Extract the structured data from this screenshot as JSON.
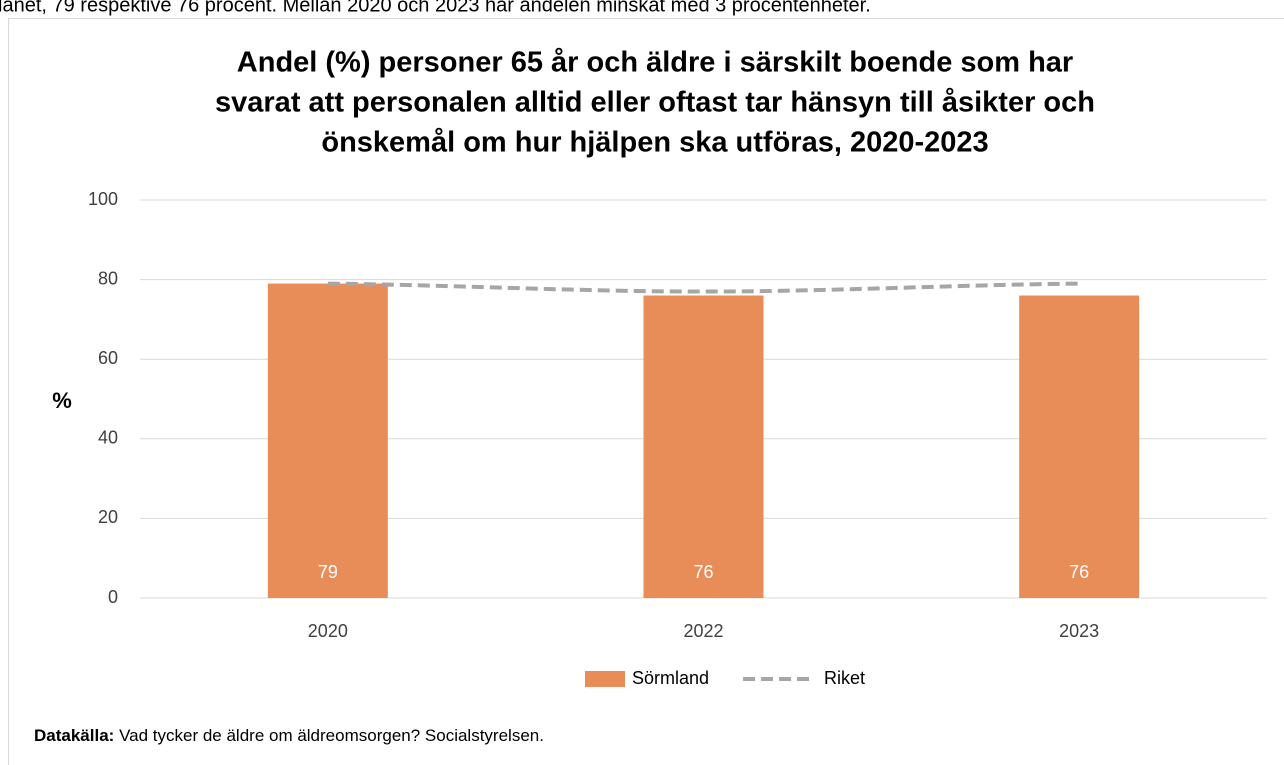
{
  "top_text": "länet, 79 respektive 76 procent. Mellan 2020 och 2023 har andelen minskat med 3 procentenheter.",
  "chart_data": {
    "type": "bar",
    "title": [
      "Andel (%) personer 65 år och äldre i särskilt boende som har",
      "svarat att personalen alltid eller oftast tar hänsyn till åsikter och",
      "önskemål om hur hjälpen ska utföras, 2020-2023"
    ],
    "ylabel": "%",
    "categories": [
      "2020",
      "2022",
      "2023"
    ],
    "series": [
      {
        "name": "Sörmland",
        "type": "bar",
        "color": "#E98D58",
        "values": [
          79,
          76,
          76
        ]
      },
      {
        "name": "Riket",
        "type": "line",
        "color": "#A6A6A6",
        "dashed": true,
        "values": [
          79,
          77,
          79
        ]
      }
    ],
    "ylim": [
      0,
      100
    ],
    "yticks": [
      0,
      20,
      40,
      60,
      80,
      100
    ],
    "grid": true,
    "legend": "bottom",
    "source_label": "Datakälla:",
    "source": "Vad tycker de äldre om äldreomsorgen? Socialstyrelsen."
  }
}
